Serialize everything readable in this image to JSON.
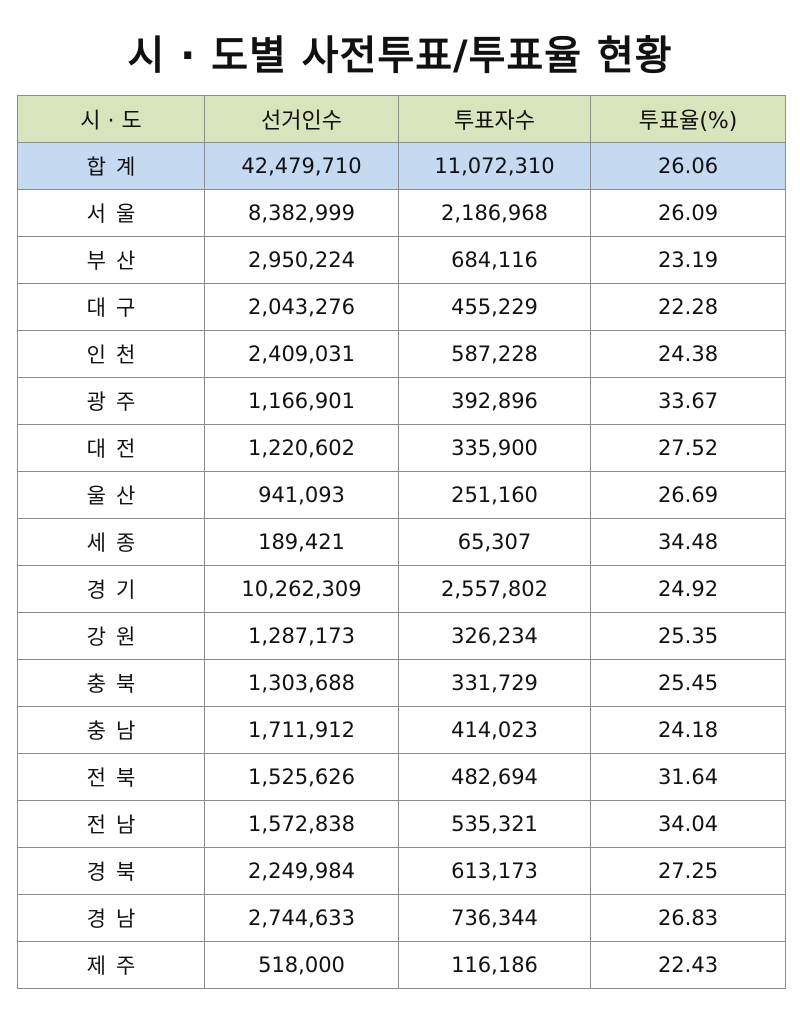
{
  "title": "시 · 도별 사전투표/투표율 현황",
  "headers": {
    "region": "시 · 도",
    "electorate": "선거인수",
    "voters": "투표자수",
    "rate": "투표율(%)"
  },
  "rows": [
    {
      "region": "합계",
      "electorate": "42,479,710",
      "voters": "11,072,310",
      "rate": "26.06"
    },
    {
      "region": "서울",
      "electorate": "8,382,999",
      "voters": "2,186,968",
      "rate": "26.09"
    },
    {
      "region": "부산",
      "electorate": "2,950,224",
      "voters": "684,116",
      "rate": "23.19"
    },
    {
      "region": "대구",
      "electorate": "2,043,276",
      "voters": "455,229",
      "rate": "22.28"
    },
    {
      "region": "인천",
      "electorate": "2,409,031",
      "voters": "587,228",
      "rate": "24.38"
    },
    {
      "region": "광주",
      "electorate": "1,166,901",
      "voters": "392,896",
      "rate": "33.67"
    },
    {
      "region": "대전",
      "electorate": "1,220,602",
      "voters": "335,900",
      "rate": "27.52"
    },
    {
      "region": "울산",
      "electorate": "941,093",
      "voters": "251,160",
      "rate": "26.69"
    },
    {
      "region": "세종",
      "electorate": "189,421",
      "voters": "65,307",
      "rate": "34.48"
    },
    {
      "region": "경기",
      "electorate": "10,262,309",
      "voters": "2,557,802",
      "rate": "24.92"
    },
    {
      "region": "강원",
      "electorate": "1,287,173",
      "voters": "326,234",
      "rate": "25.35"
    },
    {
      "region": "충북",
      "electorate": "1,303,688",
      "voters": "331,729",
      "rate": "25.45"
    },
    {
      "region": "충남",
      "electorate": "1,711,912",
      "voters": "414,023",
      "rate": "24.18"
    },
    {
      "region": "전북",
      "electorate": "1,525,626",
      "voters": "482,694",
      "rate": "31.64"
    },
    {
      "region": "전남",
      "electorate": "1,572,838",
      "voters": "535,321",
      "rate": "34.04"
    },
    {
      "region": "경북",
      "electorate": "2,249,984",
      "voters": "613,173",
      "rate": "27.25"
    },
    {
      "region": "경남",
      "electorate": "2,744,633",
      "voters": "736,344",
      "rate": "26.83"
    },
    {
      "region": "제주",
      "electorate": "518,000",
      "voters": "116,186",
      "rate": "22.43"
    }
  ]
}
